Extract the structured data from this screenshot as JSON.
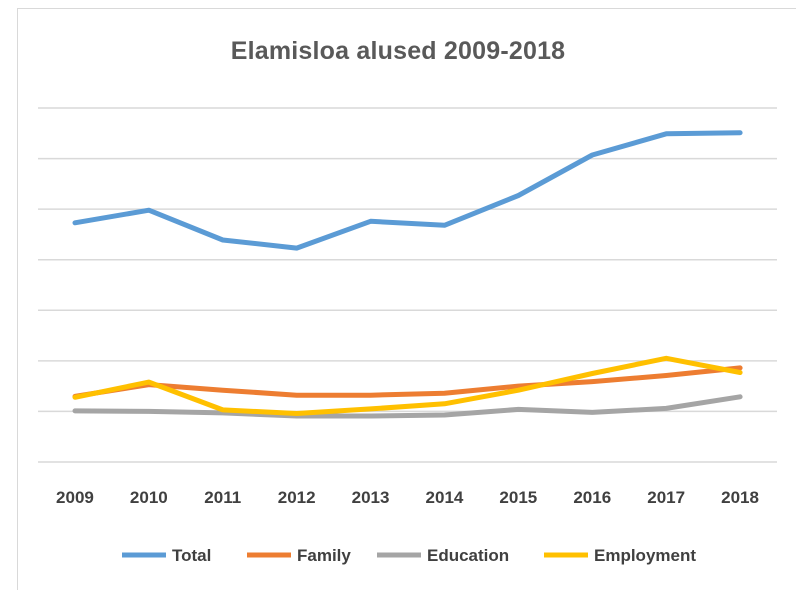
{
  "chart_data": {
    "type": "line",
    "title": "Elamisloa alused 2009-2018",
    "xlabel": "",
    "ylabel": "",
    "x": [
      "2009",
      "2010",
      "2011",
      "2012",
      "2013",
      "2014",
      "2015",
      "2016",
      "2017",
      "2018"
    ],
    "ylim": [
      0,
      7
    ],
    "grid": true,
    "legend": "bottom",
    "series": [
      {
        "name": "Total",
        "color": "#5b9bd5",
        "values": [
          4.73,
          4.98,
          4.39,
          4.23,
          4.76,
          4.68,
          5.27,
          6.07,
          6.49,
          6.51
        ]
      },
      {
        "name": "Family",
        "color": "#ed7d31",
        "values": [
          1.3,
          1.53,
          1.42,
          1.32,
          1.32,
          1.36,
          1.5,
          1.59,
          1.71,
          1.86
        ]
      },
      {
        "name": "Education",
        "color": "#a5a5a5",
        "values": [
          1.01,
          1.0,
          0.97,
          0.91,
          0.91,
          0.93,
          1.04,
          0.98,
          1.06,
          1.29
        ]
      },
      {
        "name": "Employment",
        "color": "#ffc000",
        "values": [
          1.28,
          1.58,
          1.03,
          0.96,
          1.05,
          1.15,
          1.42,
          1.75,
          2.05,
          1.77
        ]
      }
    ]
  }
}
